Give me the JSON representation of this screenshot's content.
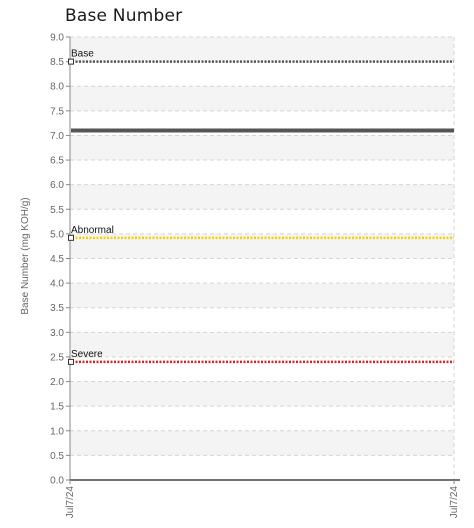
{
  "chart_data": {
    "type": "line",
    "title": "Base Number",
    "ylabel": "Base Number (mg KOH/g)",
    "xlabel": "",
    "ylim": [
      0,
      9
    ],
    "yticks": [
      "0.0",
      "0.5",
      "1.0",
      "1.5",
      "2.0",
      "2.5",
      "3.0",
      "3.5",
      "4.0",
      "4.5",
      "5.0",
      "5.5",
      "6.0",
      "6.5",
      "7.0",
      "7.5",
      "8.0",
      "8.5",
      "9.0"
    ],
    "x_categories": [
      "Jul7/24",
      "Jul7/24"
    ],
    "grid": true,
    "series": [
      {
        "values": [
          7.1,
          7.1
        ],
        "color": "#555555",
        "style": "solid"
      }
    ],
    "thresholds": [
      {
        "name": "Base",
        "value": 8.5,
        "color": "#555555"
      },
      {
        "name": "Abnormal",
        "value": 4.92,
        "color": "#f5d000"
      },
      {
        "name": "Severe",
        "value": 2.4,
        "color": "#e02020"
      }
    ]
  }
}
